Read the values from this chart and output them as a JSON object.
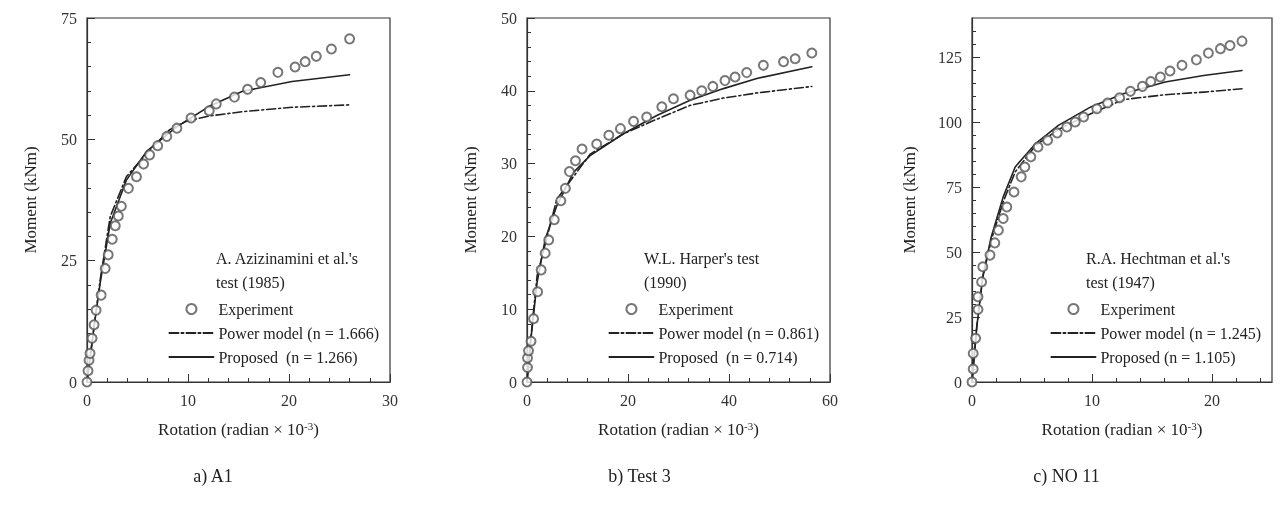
{
  "chart_data": [
    {
      "type": "line",
      "title": "a) A1",
      "xlabel": "Rotation (radian × 10$^{-3}$)",
      "ylabel": "Moment (kNm)",
      "legend_title": "A. Azizinamini et al.'s test (1985)",
      "legend": "bottom right",
      "grid": false,
      "xlim": [
        0,
        30
      ],
      "xticks": [
        0,
        10,
        20,
        30
      ],
      "ylim": [
        0,
        75
      ],
      "yticks": [
        0,
        25,
        50,
        75
      ],
      "series": [
        {
          "name": "Experiment",
          "type": "scatter",
          "marker": "circle",
          "color": "#555555",
          "x": [
            0,
            0.1,
            0.2,
            0.3,
            0.5,
            0.7,
            0.9,
            1.4,
            1.8,
            2.1,
            2.5,
            2.8,
            3.1,
            3.4,
            4.1,
            4.9,
            5.6,
            6.2,
            7.0,
            7.9,
            8.9,
            10.3,
            12.1,
            12.8,
            14.6,
            15.9,
            17.2,
            18.9,
            20.6,
            21.6,
            22.7,
            24.2,
            26.0
          ],
          "values": [
            0,
            2.3,
            4.5,
            5.9,
            9.0,
            11.8,
            14.8,
            17.9,
            23.4,
            26.2,
            29.4,
            32.2,
            34.2,
            36.2,
            39.9,
            42.3,
            44.9,
            46.8,
            48.7,
            50.6,
            52.3,
            54.4,
            55.9,
            57.3,
            58.7,
            60.3,
            61.7,
            63.8,
            64.9,
            66.0,
            67.1,
            68.6,
            70.7
          ]
        },
        {
          "name": "Power model (n = 1.666)",
          "line_style": "dashed",
          "color": "#222222",
          "x": [
            0,
            0.7,
            1.3,
            2.3,
            3.9,
            5.9,
            8.2,
            9.8,
            12.1,
            15.4,
            20.3,
            26.0
          ],
          "values": [
            0,
            11.4,
            21,
            34.1,
            42.3,
            47.1,
            52.0,
            53.7,
            54.8,
            55.7,
            56.6,
            57.1
          ]
        },
        {
          "name": "Proposed  (n = 1.266)",
          "line_style": "solid",
          "color": "#222222",
          "x": [
            0,
            0.7,
            1.3,
            2.3,
            3.9,
            5.9,
            8.9,
            12.1,
            15.4,
            20.3,
            26.0
          ],
          "values": [
            0,
            11.4,
            20.3,
            32.7,
            41.6,
            47.5,
            52.6,
            56.8,
            59.9,
            61.9,
            63.3
          ]
        }
      ]
    },
    {
      "type": "line",
      "title": "b) Test 3",
      "xlabel": "Rotation (radian × 10$^{-3}$)",
      "ylabel": "Moment (kNm)",
      "legend_title": "W.L. Harper's test (1990)",
      "legend": "bottom right",
      "grid": false,
      "xlim": [
        0,
        60
      ],
      "xticks": [
        0,
        20,
        40,
        60
      ],
      "ylim": [
        0,
        50
      ],
      "yticks": [
        0,
        10,
        20,
        30,
        40,
        50
      ],
      "series": [
        {
          "name": "Experiment",
          "type": "scatter",
          "marker": "circle",
          "color": "#555555",
          "x": [
            0,
            0.1,
            0.1,
            0.3,
            0.8,
            1.3,
            2.1,
            2.8,
            3.6,
            4.3,
            5.4,
            6.7,
            7.6,
            8.4,
            9.6,
            10.9,
            13.8,
            16.2,
            18.5,
            21.1,
            23.7,
            26.7,
            29.0,
            32.3,
            34.6,
            36.8,
            39.2,
            41.2,
            43.5,
            46.8,
            50.8,
            53.1,
            56.4
          ],
          "values": [
            0,
            2,
            3.3,
            4.3,
            5.6,
            8.7,
            12.4,
            15.4,
            17.7,
            19.5,
            22.3,
            24.9,
            26.6,
            28.9,
            30.4,
            32.0,
            32.7,
            33.9,
            34.8,
            35.8,
            36.4,
            37.8,
            38.9,
            39.4,
            40.0,
            40.6,
            41.4,
            41.9,
            42.5,
            43.5,
            44.0,
            44.4,
            45.2
          ]
        },
        {
          "name": "Power model (n = 0.861)",
          "line_style": "dashed",
          "color": "#222222",
          "x": [
            0,
            0.7,
            2.0,
            5.9,
            12.5,
            19.1,
            25.7,
            32.3,
            38.9,
            45.5,
            56.4
          ],
          "values": [
            0,
            5.6,
            14.6,
            25.1,
            31.3,
            34.1,
            36.1,
            38.0,
            39.0,
            39.7,
            40.6
          ]
        },
        {
          "name": "Proposed  (n = 0.714)",
          "line_style": "solid",
          "color": "#222222",
          "x": [
            0,
            0.7,
            2.0,
            3.6,
            5.9,
            9.2,
            12.5,
            19.1,
            25.7,
            32.3,
            38.9,
            45.5,
            56.4
          ],
          "values": [
            0,
            5.4,
            13.7,
            19.6,
            24.2,
            28.8,
            31.1,
            34.1,
            36.6,
            38.7,
            40.3,
            41.7,
            43.3
          ]
        }
      ]
    },
    {
      "type": "line",
      "title": "c) NO 11",
      "xlabel": "Rotation (radian × 10$^{-3}$)",
      "ylabel": "Moment (kNm)",
      "legend_title": "R.A. Hechtman et al.'s test (1947)",
      "legend": "bottom right",
      "grid": false,
      "xlim": [
        0,
        25
      ],
      "xticks": [
        0,
        10,
        20
      ],
      "ylim": [
        0,
        140
      ],
      "yticks": [
        0,
        25,
        50,
        75,
        100,
        125
      ],
      "series": [
        {
          "name": "Experiment",
          "type": "scatter",
          "marker": "circle",
          "color": "#555555",
          "x": [
            0,
            0.1,
            0.1,
            0.3,
            0.5,
            0.5,
            0.8,
            0.9,
            1.5,
            1.9,
            2.2,
            2.6,
            2.9,
            3.5,
            4.1,
            4.4,
            4.9,
            5.5,
            6.3,
            7.1,
            7.9,
            8.6,
            9.3,
            10.4,
            11.3,
            12.3,
            13.2,
            14.2,
            14.9,
            15.7,
            16.5,
            17.5,
            18.7,
            19.7,
            20.7,
            21.5,
            22.5
          ],
          "values": [
            0,
            5,
            11,
            16.8,
            27.9,
            32.8,
            38.5,
            44.3,
            48.8,
            53.5,
            58.4,
            62.9,
            67.3,
            73.1,
            78.9,
            82.7,
            86.6,
            90.4,
            93.0,
            95.8,
            98.1,
            100.0,
            101.9,
            105.1,
            107.3,
            109.3,
            111.8,
            113.7,
            115.6,
            117.3,
            119.6,
            121.8,
            123.9,
            126.5,
            128.2,
            129.4,
            131.1
          ]
        },
        {
          "name": "Power model (n = 1.245)",
          "line_style": "dashed",
          "color": "#222222",
          "x": [
            0,
            0.4,
            0.9,
            1.6,
            2.6,
            3.6,
            5.3,
            7.2,
            9.9,
            12.6,
            16.1,
            19.3,
            22.5
          ],
          "values": [
            0,
            21.3,
            40.5,
            54.5,
            69.3,
            80.8,
            91.0,
            97.1,
            103.2,
            108.6,
            110.5,
            111.5,
            112.8
          ]
        },
        {
          "name": "Proposed (n = 1.105)",
          "line_style": "solid",
          "color": "#222222",
          "x": [
            0,
            0.4,
            0.9,
            1.6,
            2.6,
            3.6,
            5.3,
            7.2,
            9.9,
            12.6,
            16.1,
            19.3,
            22.5
          ],
          "values": [
            0,
            21.3,
            40.5,
            55.8,
            71.2,
            82.7,
            91.7,
            98.7,
            105.8,
            110.9,
            115.4,
            117.9,
            119.8
          ]
        }
      ]
    }
  ]
}
